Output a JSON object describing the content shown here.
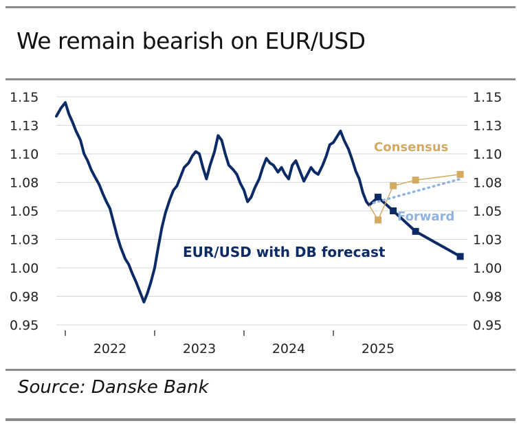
{
  "title": "We remain bearish on EUR/USD",
  "source": "Source: Danske Bank",
  "colors": {
    "navy": "#0b2a66",
    "tan": "#d4aa62",
    "forward_blue": "#8fb2df",
    "grid": "#d6d6d6",
    "rule": "#8a8a8a"
  },
  "chart_data": {
    "type": "line",
    "title": "We remain bearish on EUR/USD",
    "ylim": [
      0.95,
      1.15
    ],
    "yticks": [
      {
        "value": 1.15,
        "label": "1.15"
      },
      {
        "value": 1.125,
        "label": "1.13"
      },
      {
        "value": 1.1,
        "label": "1.10"
      },
      {
        "value": 1.075,
        "label": "1.08"
      },
      {
        "value": 1.05,
        "label": "1.05"
      },
      {
        "value": 1.025,
        "label": "1.03"
      },
      {
        "value": 1.0,
        "label": "1.00"
      },
      {
        "value": 0.975,
        "label": "0.98"
      },
      {
        "value": 0.95,
        "label": "0.95"
      }
    ],
    "xlim": [
      2021.4,
      2026.0
    ],
    "xticks": [
      2021.5,
      2022.5,
      2023.5,
      2024.5
    ],
    "xtick_labels": [
      {
        "value": 2022.0,
        "label": "2022"
      },
      {
        "value": 2023.0,
        "label": "2023"
      },
      {
        "value": 2024.0,
        "label": "2024"
      },
      {
        "value": 2025.0,
        "label": "2025"
      }
    ],
    "series": [
      {
        "name": "EUR/USD with DB forecast",
        "label_text": "EUR/USD with DB forecast",
        "style": "history",
        "x": [
          2021.4,
          2021.45,
          2021.5,
          2021.54,
          2021.58,
          2021.62,
          2021.67,
          2021.71,
          2021.75,
          2021.79,
          2021.83,
          2021.88,
          2021.92,
          2021.96,
          2022.0,
          2022.04,
          2022.08,
          2022.12,
          2022.17,
          2022.21,
          2022.25,
          2022.29,
          2022.33,
          2022.38,
          2022.42,
          2022.46,
          2022.5,
          2022.54,
          2022.58,
          2022.62,
          2022.67,
          2022.71,
          2022.75,
          2022.79,
          2022.83,
          2022.88,
          2022.92,
          2022.96,
          2023.0,
          2023.04,
          2023.08,
          2023.12,
          2023.17,
          2023.21,
          2023.25,
          2023.29,
          2023.33,
          2023.38,
          2023.42,
          2023.46,
          2023.5,
          2023.54,
          2023.58,
          2023.62,
          2023.67,
          2023.71,
          2023.75,
          2023.79,
          2023.83,
          2023.88,
          2023.92,
          2023.96,
          2024.0,
          2024.04,
          2024.08,
          2024.12,
          2024.17,
          2024.21,
          2024.25,
          2024.29,
          2024.33,
          2024.38,
          2024.42,
          2024.46,
          2024.5,
          2024.54,
          2024.58,
          2024.62,
          2024.67,
          2024.71,
          2024.75,
          2024.79,
          2024.83,
          2024.87,
          2024.9
        ],
        "y": [
          1.133,
          1.14,
          1.145,
          1.135,
          1.128,
          1.12,
          1.112,
          1.1,
          1.094,
          1.086,
          1.08,
          1.073,
          1.065,
          1.058,
          1.052,
          1.04,
          1.028,
          1.018,
          1.008,
          1.003,
          0.995,
          0.988,
          0.98,
          0.97,
          0.978,
          0.988,
          1.0,
          1.018,
          1.035,
          1.048,
          1.06,
          1.068,
          1.072,
          1.08,
          1.088,
          1.092,
          1.098,
          1.102,
          1.1,
          1.088,
          1.078,
          1.09,
          1.102,
          1.116,
          1.112,
          1.1,
          1.09,
          1.086,
          1.082,
          1.074,
          1.068,
          1.058,
          1.062,
          1.07,
          1.078,
          1.088,
          1.096,
          1.092,
          1.09,
          1.084,
          1.088,
          1.082,
          1.078,
          1.09,
          1.094,
          1.086,
          1.076,
          1.082,
          1.088,
          1.084,
          1.082,
          1.09,
          1.098,
          1.108,
          1.11,
          1.115,
          1.12,
          1.112,
          1.104,
          1.095,
          1.085,
          1.078,
          1.066,
          1.058,
          1.055
        ]
      },
      {
        "name": "EUR/USD DB forecast",
        "style": "forecast",
        "x": [
          2024.9,
          2025.0,
          2025.17,
          2025.42,
          2025.92
        ],
        "y": [
          1.055,
          1.062,
          1.05,
          1.032,
          1.01
        ]
      },
      {
        "name": "Consensus",
        "label_text": "Consensus",
        "style": "consensus",
        "x": [
          2024.9,
          2025.0,
          2025.17,
          2025.42,
          2025.92
        ],
        "y": [
          1.055,
          1.042,
          1.072,
          1.077,
          1.082
        ]
      },
      {
        "name": "Forward",
        "label_text": "Forward",
        "style": "forward",
        "x": [
          2024.95,
          2025.92
        ],
        "y": [
          1.057,
          1.078
        ]
      }
    ]
  }
}
